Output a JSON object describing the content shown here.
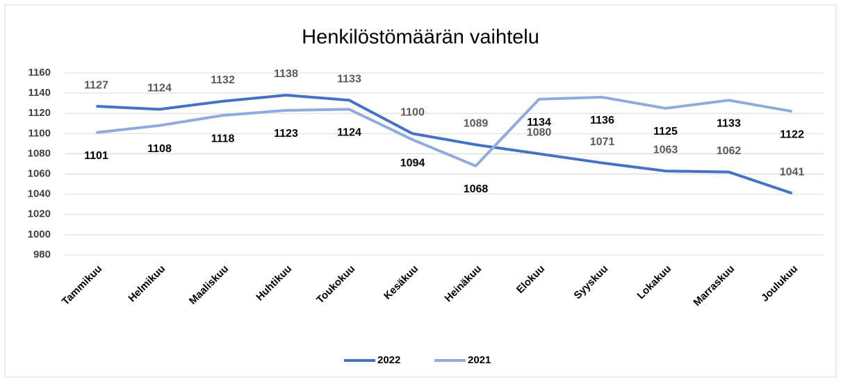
{
  "chart_data": {
    "type": "line",
    "title": "Henkilöstömäärän vaihtelu",
    "categories": [
      "Tammikuu",
      "Helmikuu",
      "Maaliskuu",
      "Huhtikuu",
      "Toukokuu",
      "Kesäkuu",
      "Heinäkuu",
      "Elokuu",
      "Syyskuu",
      "Lokakuu",
      "Marraskuu",
      "Joulukuu"
    ],
    "series": [
      {
        "name": "2022",
        "color": "#4472c4",
        "values": [
          1127,
          1124,
          1132,
          1138,
          1133,
          1100,
          1089,
          1080,
          1071,
          1063,
          1062,
          1041
        ]
      },
      {
        "name": "2021",
        "color": "#8faadc",
        "values": [
          1101,
          1108,
          1118,
          1123,
          1124,
          1094,
          1068,
          1134,
          1136,
          1125,
          1133,
          1122
        ]
      }
    ],
    "ylim": [
      980,
      1160
    ],
    "yticks": [
      980,
      1000,
      1020,
      1040,
      1060,
      1080,
      1100,
      1120,
      1140,
      1160
    ],
    "grid": true,
    "legend": "bottom"
  }
}
